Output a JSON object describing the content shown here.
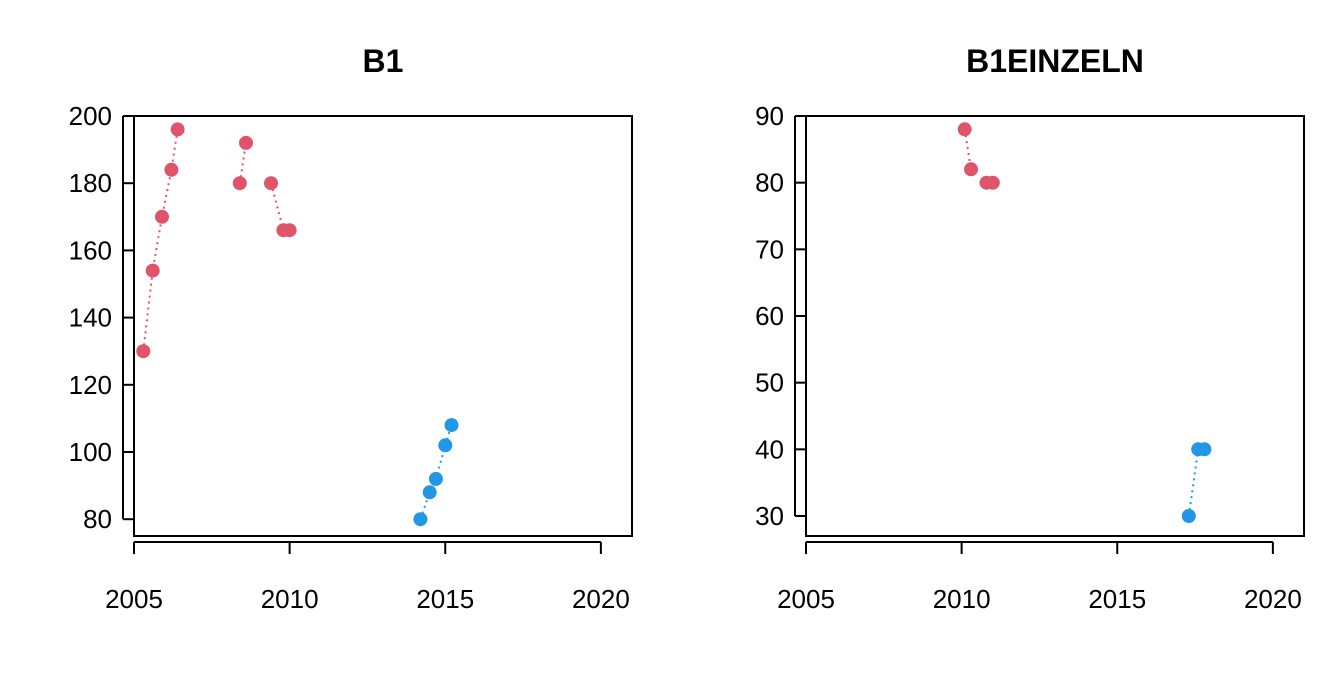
{
  "chart_data": [
    {
      "type": "scatter",
      "title": "B1",
      "xlabel": "",
      "ylabel": "",
      "xlim": [
        2005,
        2021
      ],
      "ylim": [
        75,
        200
      ],
      "xticks": [
        2005,
        2010,
        2015,
        2020
      ],
      "yticks": [
        80,
        100,
        120,
        140,
        160,
        180,
        200
      ],
      "series": [
        {
          "color": "#DF536B",
          "connector": "dotted",
          "segments": [
            [
              [
                2005.3,
                130
              ],
              [
                2005.6,
                154
              ],
              [
                2005.9,
                170
              ],
              [
                2006.2,
                184
              ],
              [
                2006.4,
                196
              ]
            ],
            [
              [
                2008.4,
                180
              ],
              [
                2008.6,
                192
              ]
            ],
            [
              [
                2009.4,
                180
              ],
              [
                2009.8,
                166
              ],
              [
                2010.0,
                166
              ]
            ]
          ]
        },
        {
          "color": "#2297E6",
          "connector": "dotted",
          "segments": [
            [
              [
                2014.2,
                80
              ],
              [
                2014.5,
                88
              ],
              [
                2014.7,
                92
              ],
              [
                2015.0,
                102
              ],
              [
                2015.2,
                108
              ]
            ]
          ]
        }
      ]
    },
    {
      "type": "scatter",
      "title": "B1EINZELN",
      "xlabel": "",
      "ylabel": "",
      "xlim": [
        2005,
        2021
      ],
      "ylim": [
        27,
        90
      ],
      "xticks": [
        2005,
        2010,
        2015,
        2020
      ],
      "yticks": [
        30,
        40,
        50,
        60,
        70,
        80,
        90
      ],
      "series": [
        {
          "color": "#DF536B",
          "connector": "dotted",
          "segments": [
            [
              [
                2010.1,
                88
              ],
              [
                2010.3,
                82
              ]
            ],
            [
              [
                2010.8,
                80
              ],
              [
                2011.0,
                80
              ]
            ]
          ]
        },
        {
          "color": "#2297E6",
          "connector": "dotted",
          "segments": [
            [
              [
                2017.3,
                30
              ],
              [
                2017.6,
                40
              ],
              [
                2017.8,
                40
              ]
            ]
          ]
        }
      ]
    }
  ]
}
